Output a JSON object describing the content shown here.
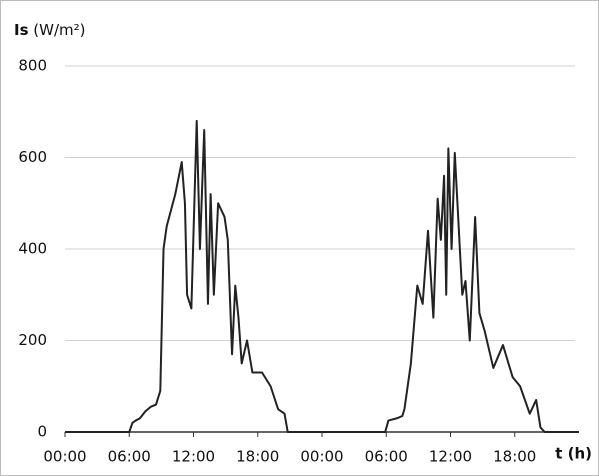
{
  "chart_data": {
    "type": "line",
    "ylabel": "Is",
    "ylabel_unit": "(W/m²)",
    "xlabel": "t (h)",
    "x": [
      0,
      6.0,
      6.3,
      6.6,
      7.0,
      7.5,
      8.0,
      8.5,
      8.9,
      9.2,
      9.5,
      10.3,
      10.9,
      11.2,
      11.4,
      11.8,
      12.3,
      12.6,
      13.0,
      13.35,
      13.6,
      13.9,
      14.3,
      14.9,
      15.2,
      15.6,
      15.9,
      16.2,
      16.5,
      17.0,
      17.5,
      18.4,
      19.2,
      19.9,
      20.5,
      20.8,
      29.9,
      30.2,
      31.0,
      31.5,
      31.7,
      32.3,
      32.9,
      33.4,
      33.9,
      34.4,
      34.8,
      35.1,
      35.4,
      35.6,
      35.8,
      36.1,
      36.4,
      37.1,
      37.4,
      37.8,
      38.3,
      38.7,
      39.2,
      40.0,
      40.9,
      41.8,
      42.5,
      43.4,
      44.0,
      44.4,
      44.8,
      48
    ],
    "values": [
      0,
      0,
      20,
      25,
      30,
      45,
      55,
      60,
      90,
      400,
      450,
      520,
      590,
      500,
      300,
      270,
      680,
      400,
      660,
      280,
      520,
      300,
      500,
      470,
      420,
      170,
      320,
      250,
      150,
      200,
      130,
      130,
      100,
      50,
      40,
      0,
      0,
      25,
      30,
      35,
      50,
      150,
      320,
      280,
      440,
      250,
      510,
      420,
      560,
      300,
      620,
      400,
      610,
      300,
      330,
      200,
      470,
      260,
      220,
      140,
      190,
      120,
      100,
      40,
      70,
      10,
      0,
      0
    ],
    "color": "#222222",
    "xlim": [
      0,
      48
    ],
    "xticks": [
      {
        "value": 0,
        "label": "00:00"
      },
      {
        "value": 6,
        "label": "06:00"
      },
      {
        "value": 12,
        "label": "12:00"
      },
      {
        "value": 18,
        "label": "18:00"
      },
      {
        "value": 24,
        "label": "00:00"
      },
      {
        "value": 30,
        "label": "06:00"
      },
      {
        "value": 36,
        "label": "12:00"
      },
      {
        "value": 42,
        "label": "18:00"
      }
    ],
    "ylim": [
      0,
      800
    ],
    "yticks": [
      0,
      200,
      400,
      600,
      800
    ],
    "grid": true
  }
}
